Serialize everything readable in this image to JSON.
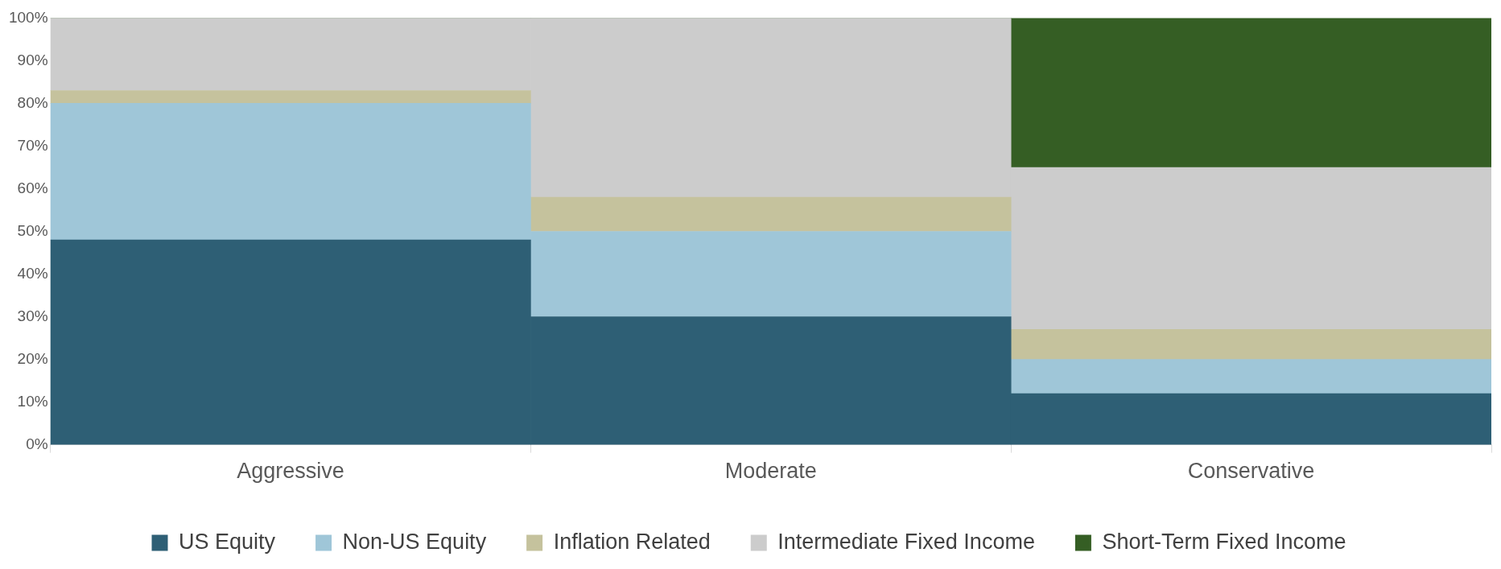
{
  "chart_data": {
    "type": "bar",
    "stacked": true,
    "categories": [
      "Aggressive",
      "Moderate",
      "Conservative"
    ],
    "series": [
      {
        "name": "US Equity",
        "color": "#2e5f75",
        "values": [
          48,
          30,
          12
        ]
      },
      {
        "name": "Non-US Equity",
        "color": "#9fc6d8",
        "values": [
          32,
          20,
          8
        ]
      },
      {
        "name": "Inflation Related",
        "color": "#c5c29d",
        "values": [
          3,
          8,
          7
        ]
      },
      {
        "name": "Intermediate Fixed Income",
        "color": "#cccccc",
        "values": [
          17,
          42,
          38
        ]
      },
      {
        "name": "Short-Term Fixed Income",
        "color": "#355e24",
        "values": [
          0,
          0,
          35
        ]
      }
    ],
    "ylim": [
      0,
      100
    ],
    "yticks": [
      {
        "value": 0,
        "label": "0%"
      },
      {
        "value": 10,
        "label": "10%"
      },
      {
        "value": 20,
        "label": "20%"
      },
      {
        "value": 30,
        "label": "30%"
      },
      {
        "value": 40,
        "label": "40%"
      },
      {
        "value": 50,
        "label": "50%"
      },
      {
        "value": 60,
        "label": "60%"
      },
      {
        "value": 70,
        "label": "70%"
      },
      {
        "value": 80,
        "label": "80%"
      },
      {
        "value": 90,
        "label": "90%"
      },
      {
        "value": 100,
        "label": "100%"
      }
    ],
    "grid": false,
    "legend": "bottom"
  }
}
